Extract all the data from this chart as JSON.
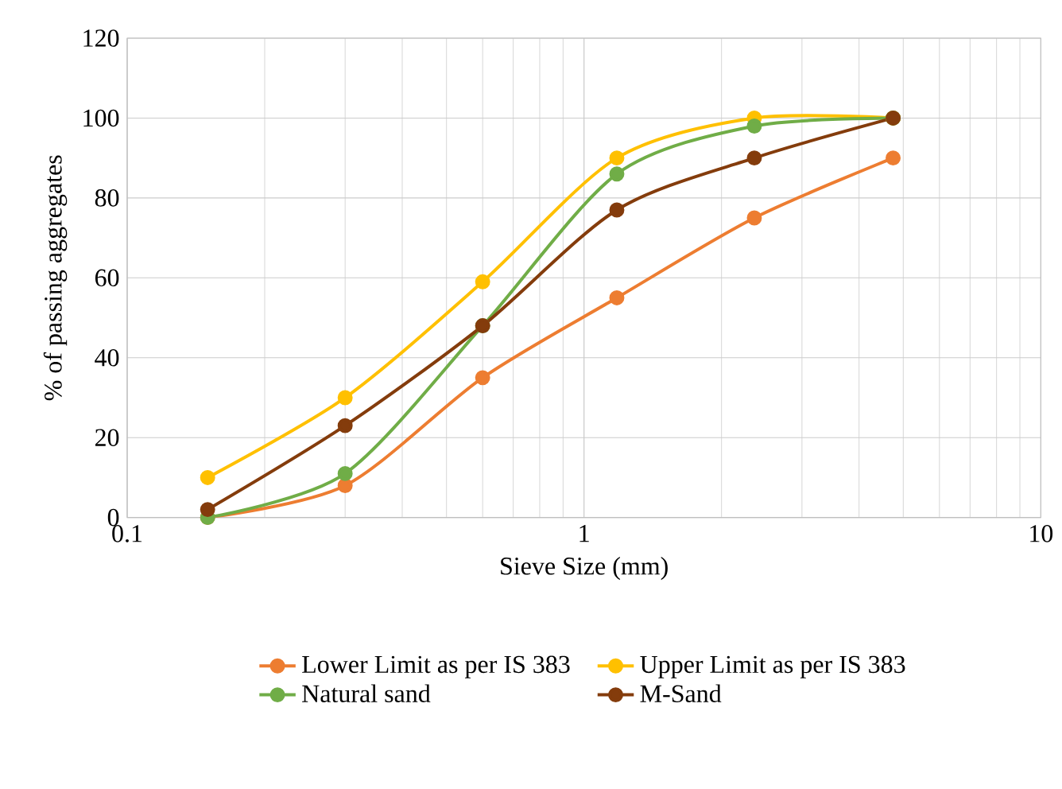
{
  "chart_data": {
    "type": "line",
    "xlabel": "Sieve Size (mm)",
    "ylabel": "% of passing aggregates",
    "x": [
      0.15,
      0.3,
      0.6,
      1.18,
      2.36,
      4.75
    ],
    "series": [
      {
        "name": "Lower Limit as per IS 383",
        "color": "#ed7d31",
        "values": [
          0,
          8,
          35,
          55,
          75,
          90
        ]
      },
      {
        "name": "Upper Limit as per IS 383",
        "color": "#ffc000",
        "values": [
          10,
          30,
          59,
          90,
          100,
          100
        ]
      },
      {
        "name": "Natural sand",
        "color": "#70ad47",
        "values": [
          0,
          11,
          48,
          86,
          98,
          100
        ]
      },
      {
        "name": "M-Sand",
        "color": "#843c0c",
        "values": [
          2,
          23,
          48,
          77,
          90,
          100
        ]
      }
    ],
    "xlim": [
      0.1,
      10
    ],
    "xticks": [
      0.1,
      1,
      10
    ],
    "ylim": [
      0,
      120
    ],
    "yticks": [
      0,
      20,
      40,
      60,
      80,
      100,
      120
    ],
    "log": "x",
    "grid": true,
    "legend": "bottom",
    "marker": "circle",
    "line_style": "solid"
  }
}
